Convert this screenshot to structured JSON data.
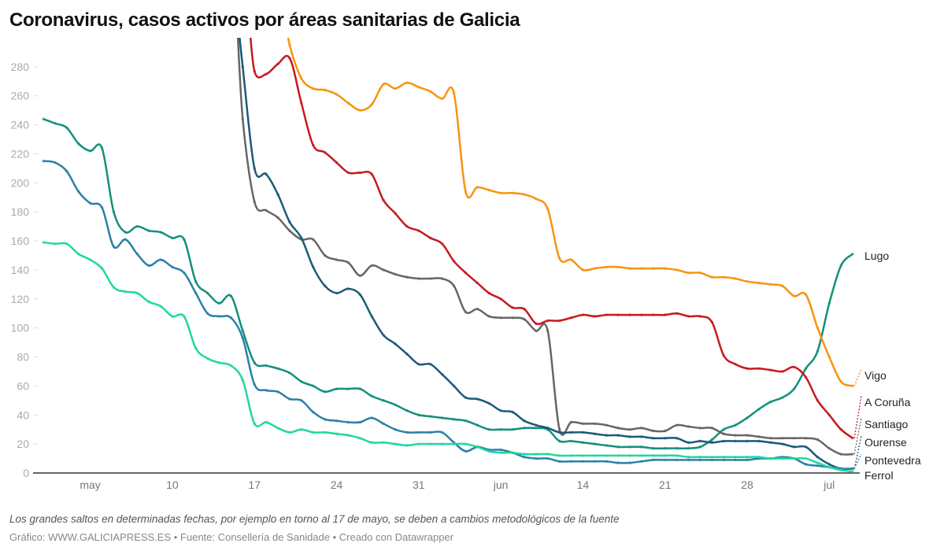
{
  "title": "Coronavirus, casos activos por áreas sanitarias de Galicia",
  "note": "Los grandes saltos en determinadas fechas, por ejemplo en torno al 17 de mayo, se deben a cambios metodológicos de la fuente",
  "footer": "Gráfico: WWW.GALICIAPRESS.ES • Fuente: Consellería de Sanidade • Creado con Datawrapper",
  "chart_data": {
    "type": "line",
    "title": "Coronavirus, casos activos por áreas sanitarias de Galicia",
    "xlabel": "",
    "ylabel": "",
    "ylim": [
      0,
      300
    ],
    "yticks": [
      0,
      20,
      40,
      60,
      80,
      100,
      120,
      140,
      160,
      180,
      200,
      220,
      240,
      260,
      280
    ],
    "grid": false,
    "legend": "direct labels at line ends (right)",
    "xticks": [
      {
        "date": "05-03",
        "label": "may"
      },
      {
        "date": "05-10",
        "label": "10"
      },
      {
        "date": "05-17",
        "label": "17"
      },
      {
        "date": "05-24",
        "label": "24"
      },
      {
        "date": "05-31",
        "label": "31"
      },
      {
        "date": "06-07",
        "label": "jun"
      },
      {
        "date": "06-14",
        "label": "14"
      },
      {
        "date": "06-21",
        "label": "21"
      },
      {
        "date": "06-28",
        "label": "28"
      },
      {
        "date": "07-05",
        "label": "jul"
      }
    ],
    "x": [
      "04-29",
      "04-30",
      "05-01",
      "05-02",
      "05-03",
      "05-04",
      "05-05",
      "05-06",
      "05-07",
      "05-08",
      "05-09",
      "05-10",
      "05-11",
      "05-12",
      "05-13",
      "05-14",
      "05-15",
      "05-16",
      "05-17",
      "05-18",
      "05-19",
      "05-20",
      "05-21",
      "05-22",
      "05-23",
      "05-24",
      "05-25",
      "05-26",
      "05-27",
      "05-28",
      "05-29",
      "05-30",
      "05-31",
      "06-01",
      "06-02",
      "06-03",
      "06-04",
      "06-05",
      "06-06",
      "06-07",
      "06-08",
      "06-09",
      "06-10",
      "06-11",
      "06-12",
      "06-13",
      "06-14",
      "06-15",
      "06-16",
      "06-17",
      "06-18",
      "06-19",
      "06-20",
      "06-21",
      "06-22",
      "06-23",
      "06-24",
      "06-25",
      "06-26",
      "06-27",
      "06-28",
      "06-29",
      "06-30",
      "07-01",
      "07-02",
      "07-03",
      "07-04",
      "07-05",
      "07-06",
      "07-07"
    ],
    "series": [
      {
        "name": "Lugo",
        "color": "#13907a",
        "values": [
          244,
          241,
          238,
          227,
          222,
          224,
          180,
          166,
          170,
          167,
          166,
          162,
          161,
          132,
          124,
          117,
          122,
          98,
          76,
          74,
          72,
          69,
          63,
          60,
          56,
          58,
          58,
          58,
          53,
          50,
          47,
          43,
          40,
          39,
          38,
          37,
          36,
          33,
          30,
          30,
          30,
          31,
          31,
          30,
          22,
          22,
          21,
          20,
          19,
          18,
          18,
          18,
          17,
          17,
          17,
          17,
          18,
          23,
          30,
          33,
          38,
          44,
          49,
          52,
          58,
          72,
          84,
          117,
          143,
          151
        ]
      },
      {
        "name": "Vigo",
        "color": "#f7940f",
        "values": [
          null,
          null,
          null,
          null,
          null,
          null,
          null,
          null,
          null,
          null,
          null,
          null,
          null,
          null,
          null,
          null,
          null,
          null,
          null,
          null,
          null,
          295,
          272,
          265,
          264,
          261,
          255,
          250,
          254,
          268,
          265,
          269,
          266,
          263,
          258,
          262,
          194,
          197,
          195,
          193,
          193,
          192,
          189,
          182,
          148,
          147,
          140,
          141,
          142,
          142,
          141,
          141,
          141,
          141,
          140,
          138,
          138,
          135,
          135,
          134,
          132,
          131,
          130,
          129,
          122,
          123,
          100,
          80,
          63,
          60
        ]
      },
      {
        "name": "A Coruña",
        "color": "#c7191f",
        "values": [
          null,
          null,
          null,
          null,
          null,
          null,
          null,
          null,
          null,
          null,
          null,
          null,
          null,
          null,
          null,
          null,
          null,
          null,
          277,
          275,
          282,
          286,
          255,
          226,
          221,
          214,
          207,
          207,
          206,
          188,
          179,
          170,
          167,
          162,
          158,
          146,
          138,
          131,
          124,
          120,
          114,
          113,
          103,
          105,
          105,
          107,
          109,
          108,
          109,
          109,
          109,
          109,
          109,
          109,
          110,
          108,
          108,
          104,
          81,
          75,
          72,
          72,
          71,
          70,
          73,
          66,
          50,
          40,
          30,
          24
        ]
      },
      {
        "name": "Santiago",
        "color": "#666666",
        "values": [
          null,
          null,
          null,
          null,
          null,
          null,
          null,
          null,
          null,
          null,
          null,
          null,
          null,
          null,
          null,
          null,
          null,
          244,
          187,
          181,
          176,
          167,
          161,
          161,
          150,
          147,
          145,
          136,
          143,
          140,
          137,
          135,
          134,
          134,
          134,
          129,
          111,
          113,
          108,
          107,
          107,
          106,
          98,
          98,
          30,
          35,
          34,
          34,
          33,
          31,
          30,
          31,
          29,
          29,
          33,
          32,
          31,
          31,
          27,
          26,
          26,
          25,
          24,
          24,
          24,
          24,
          23,
          17,
          13,
          13
        ]
      },
      {
        "name": "Ourense",
        "color": "#1b5a78",
        "values": [
          null,
          null,
          null,
          null,
          null,
          null,
          null,
          null,
          null,
          null,
          null,
          null,
          null,
          null,
          null,
          null,
          null,
          280,
          210,
          206,
          192,
          173,
          162,
          142,
          129,
          124,
          127,
          123,
          108,
          95,
          89,
          82,
          75,
          75,
          68,
          60,
          52,
          51,
          48,
          43,
          42,
          36,
          33,
          31,
          28,
          28,
          28,
          27,
          26,
          26,
          25,
          25,
          24,
          24,
          24,
          21,
          22,
          21,
          22,
          22,
          22,
          22,
          21,
          20,
          18,
          18,
          11,
          6,
          3,
          3
        ]
      },
      {
        "name": "Pontevedra",
        "color": "#2b80a9",
        "values": [
          215,
          214,
          208,
          194,
          186,
          183,
          156,
          161,
          151,
          143,
          147,
          142,
          138,
          124,
          110,
          108,
          107,
          93,
          61,
          57,
          56,
          51,
          50,
          42,
          37,
          36,
          35,
          35,
          38,
          34,
          30,
          28,
          28,
          28,
          28,
          21,
          15,
          18,
          16,
          16,
          14,
          11,
          10,
          10,
          8,
          8,
          8,
          8,
          8,
          7,
          7,
          8,
          9,
          9,
          9,
          9,
          9,
          9,
          9,
          9,
          9,
          10,
          10,
          11,
          10,
          6,
          5,
          4,
          3,
          3
        ]
      },
      {
        "name": "Ferrol",
        "color": "#1fd8a0",
        "values": [
          159,
          158,
          158,
          151,
          147,
          141,
          128,
          125,
          124,
          118,
          115,
          108,
          108,
          86,
          79,
          76,
          74,
          64,
          34,
          35,
          31,
          28,
          30,
          28,
          28,
          27,
          26,
          24,
          21,
          21,
          20,
          19,
          20,
          20,
          20,
          20,
          20,
          18,
          15,
          14,
          14,
          13,
          13,
          13,
          12,
          12,
          12,
          12,
          12,
          12,
          12,
          12,
          12,
          12,
          12,
          11,
          11,
          11,
          11,
          11,
          11,
          11,
          10,
          10,
          10,
          10,
          7,
          4,
          2,
          1
        ]
      }
    ]
  }
}
